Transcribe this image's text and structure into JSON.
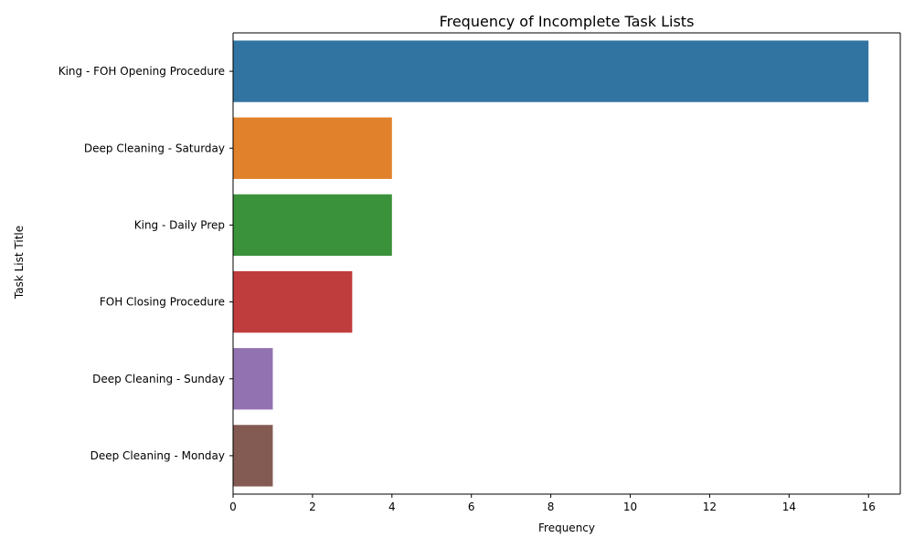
{
  "chart_data": {
    "type": "bar",
    "orientation": "horizontal",
    "title": "Frequency of Incomplete Task Lists",
    "xlabel": "Frequency",
    "ylabel": "Task List Title",
    "categories": [
      "King - FOH Opening Procedure",
      "Deep Cleaning - Saturday",
      "King - Daily Prep",
      "FOH Closing Procedure",
      "Deep Cleaning - Sunday",
      "Deep Cleaning - Monday"
    ],
    "values": [
      16,
      4,
      4,
      3,
      1,
      1
    ],
    "colors": [
      "#3274a1",
      "#e1812c",
      "#3a923a",
      "#c03d3e",
      "#9372b2",
      "#845b53"
    ],
    "xlim": [
      0,
      16.8
    ],
    "xticks": [
      "0",
      "2",
      "4",
      "6",
      "8",
      "10",
      "12",
      "14",
      "16"
    ],
    "grid": false,
    "legend": "none"
  }
}
